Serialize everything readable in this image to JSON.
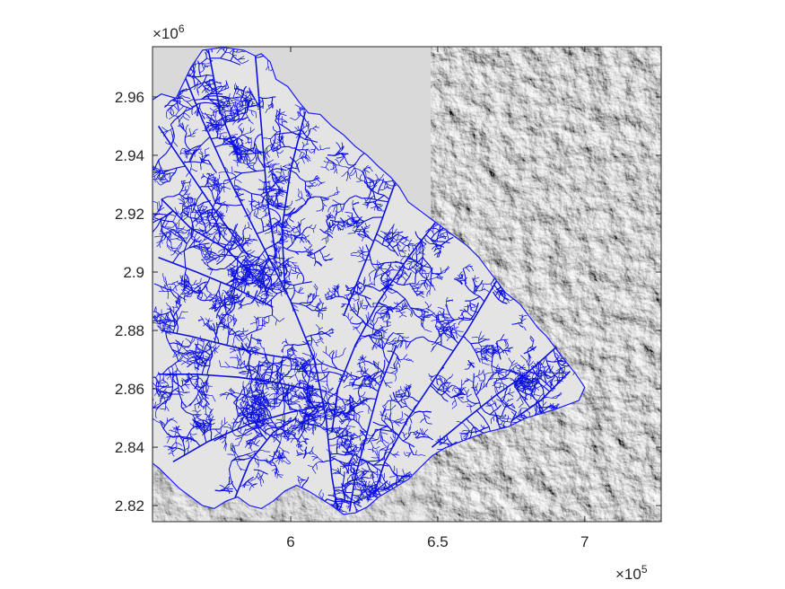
{
  "chart_data": {
    "type": "map",
    "description_layers": [
      "hillshade relief (grayscale)",
      "river network (blue)"
    ],
    "x_axis": {
      "ticks": [
        6,
        6.5,
        7
      ],
      "tick_labels": [
        "6",
        "6.5",
        "7"
      ],
      "multiplier_text": "×10",
      "multiplier_exponent": "5",
      "lim": [
        5.53,
        7.26
      ]
    },
    "y_axis": {
      "ticks": [
        2.82,
        2.84,
        2.86,
        2.88,
        2.9,
        2.92,
        2.94,
        2.96
      ],
      "tick_labels": [
        "2.82",
        "2.84",
        "2.86",
        "2.88",
        "2.9",
        "2.92",
        "2.94",
        "2.96"
      ],
      "multiplier_text": "×10",
      "multiplier_exponent": "6",
      "lim": [
        2.8145,
        2.9772
      ]
    },
    "basin_outline": [
      [
        5.53,
        2.959
      ],
      [
        5.56,
        2.961
      ],
      [
        5.61,
        2.9595
      ],
      [
        5.66,
        2.97
      ],
      [
        5.7,
        2.976
      ],
      [
        5.77,
        2.977
      ],
      [
        5.84,
        2.976
      ],
      [
        5.88,
        2.974
      ],
      [
        5.9,
        2.9748
      ],
      [
        5.93,
        2.972
      ],
      [
        5.95,
        2.966
      ],
      [
        5.99,
        2.9635
      ],
      [
        6.03,
        2.958
      ],
      [
        6.06,
        2.9545
      ],
      [
        6.1,
        2.954
      ],
      [
        6.14,
        2.95
      ],
      [
        6.18,
        2.947
      ],
      [
        6.22,
        2.943
      ],
      [
        6.26,
        2.94
      ],
      [
        6.3,
        2.936
      ],
      [
        6.34,
        2.9325
      ],
      [
        6.37,
        2.929
      ],
      [
        6.4,
        2.924
      ],
      [
        6.44,
        2.921
      ],
      [
        6.48,
        2.918
      ],
      [
        6.52,
        2.915
      ],
      [
        6.56,
        2.912
      ],
      [
        6.6,
        2.909
      ],
      [
        6.64,
        2.905
      ],
      [
        6.67,
        2.901
      ],
      [
        6.7,
        2.897
      ],
      [
        6.73,
        2.893
      ],
      [
        6.78,
        2.889
      ],
      [
        6.81,
        2.885
      ],
      [
        6.84,
        2.881
      ],
      [
        6.87,
        2.878
      ],
      [
        6.9,
        2.874
      ],
      [
        6.93,
        2.87
      ],
      [
        6.97,
        2.865
      ],
      [
        7.0,
        2.8605
      ],
      [
        6.98,
        2.856
      ],
      [
        6.9,
        2.853
      ],
      [
        6.8,
        2.85
      ],
      [
        6.74,
        2.847
      ],
      [
        6.66,
        2.845
      ],
      [
        6.58,
        2.842
      ],
      [
        6.52,
        2.8395
      ],
      [
        6.48,
        2.837
      ],
      [
        6.44,
        2.833
      ],
      [
        6.4,
        2.829
      ],
      [
        6.35,
        2.826
      ],
      [
        6.3,
        2.823
      ],
      [
        6.26,
        2.8195
      ],
      [
        6.22,
        2.8175
      ],
      [
        6.18,
        2.817
      ],
      [
        6.14,
        2.82
      ],
      [
        6.1,
        2.8225
      ],
      [
        6.06,
        2.825
      ],
      [
        6.02,
        2.827
      ],
      [
        5.98,
        2.825
      ],
      [
        5.94,
        2.8215
      ],
      [
        5.9,
        2.819
      ],
      [
        5.86,
        2.82
      ],
      [
        5.82,
        2.823
      ],
      [
        5.78,
        2.8215
      ],
      [
        5.74,
        2.819
      ],
      [
        5.7,
        2.82
      ],
      [
        5.66,
        2.823
      ],
      [
        5.62,
        2.826
      ],
      [
        5.58,
        2.83
      ],
      [
        5.55,
        2.833
      ],
      [
        5.53,
        2.8345
      ]
    ],
    "rivers": [
      [
        [
          5.62,
          2.972
        ],
        [
          5.7,
          2.952
        ],
        [
          5.8,
          2.93
        ],
        [
          5.9,
          2.91
        ],
        [
          6.0,
          2.89
        ],
        [
          6.08,
          2.87
        ],
        [
          6.12,
          2.85
        ],
        [
          6.14,
          2.83
        ],
        [
          6.16,
          2.818
        ]
      ],
      [
        [
          5.55,
          2.95
        ],
        [
          5.65,
          2.935
        ],
        [
          5.75,
          2.92
        ],
        [
          5.86,
          2.905
        ]
      ],
      [
        [
          5.55,
          2.905
        ],
        [
          5.68,
          2.9
        ],
        [
          5.8,
          2.895
        ],
        [
          5.94,
          2.888
        ]
      ],
      [
        [
          5.55,
          2.865
        ],
        [
          5.68,
          2.865
        ],
        [
          5.82,
          2.864
        ],
        [
          5.96,
          2.862
        ],
        [
          6.05,
          2.86
        ]
      ],
      [
        [
          5.6,
          2.835
        ],
        [
          5.72,
          2.842
        ],
        [
          5.86,
          2.848
        ],
        [
          6.0,
          2.852
        ],
        [
          6.1,
          2.854
        ]
      ],
      [
        [
          5.88,
          2.974
        ],
        [
          5.9,
          2.95
        ],
        [
          5.92,
          2.925
        ],
        [
          5.95,
          2.905
        ]
      ],
      [
        [
          5.72,
          2.976
        ],
        [
          5.76,
          2.955
        ],
        [
          5.82,
          2.94
        ]
      ],
      [
        [
          6.05,
          2.955
        ],
        [
          6.0,
          2.935
        ],
        [
          5.97,
          2.915
        ],
        [
          5.98,
          2.895
        ]
      ],
      [
        [
          6.5,
          2.918
        ],
        [
          6.4,
          2.905
        ],
        [
          6.3,
          2.89
        ],
        [
          6.22,
          2.875
        ],
        [
          6.16,
          2.86
        ],
        [
          6.14,
          2.845
        ]
      ],
      [
        [
          6.7,
          2.897
        ],
        [
          6.6,
          2.88
        ],
        [
          6.5,
          2.865
        ],
        [
          6.4,
          2.85
        ],
        [
          6.32,
          2.835
        ],
        [
          6.28,
          2.823
        ]
      ],
      [
        [
          6.9,
          2.874
        ],
        [
          6.8,
          2.865
        ],
        [
          6.7,
          2.858
        ],
        [
          6.6,
          2.85
        ],
        [
          6.48,
          2.84
        ]
      ],
      [
        [
          6.95,
          2.866
        ],
        [
          6.85,
          2.856
        ],
        [
          6.75,
          2.849
        ]
      ],
      [
        [
          6.36,
          2.932
        ],
        [
          6.3,
          2.915
        ],
        [
          6.24,
          2.9
        ],
        [
          6.18,
          2.885
        ]
      ],
      [
        [
          5.56,
          2.925
        ],
        [
          5.66,
          2.915
        ],
        [
          5.78,
          2.908
        ],
        [
          5.88,
          2.898
        ]
      ],
      [
        [
          5.56,
          2.88
        ],
        [
          5.66,
          2.878
        ],
        [
          5.78,
          2.875
        ],
        [
          5.9,
          2.872
        ],
        [
          6.02,
          2.87
        ]
      ],
      [
        [
          5.8,
          2.82
        ],
        [
          5.86,
          2.835
        ],
        [
          5.94,
          2.845
        ],
        [
          6.02,
          2.85
        ]
      ],
      [
        [
          6.2,
          2.818
        ],
        [
          6.22,
          2.83
        ],
        [
          6.26,
          2.845
        ],
        [
          6.3,
          2.86
        ],
        [
          6.36,
          2.875
        ]
      ]
    ]
  }
}
